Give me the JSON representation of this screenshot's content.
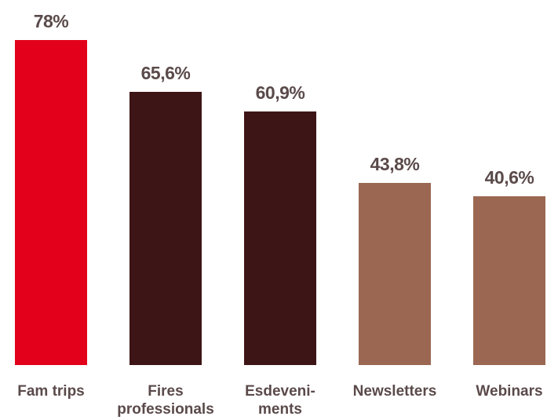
{
  "chart_data": {
    "type": "bar",
    "categories": [
      "Fam trips",
      "Fires\nprofessionals",
      "Esdeveni-\nments",
      "Newsletters",
      "Webinars"
    ],
    "values": [
      78,
      65.6,
      60.9,
      43.8,
      40.6
    ],
    "value_labels": [
      "78%",
      "65,6%",
      "60,9%",
      "43,8%",
      "40,6%"
    ],
    "colors": [
      "#e2001a",
      "#3e1516",
      "#3e1516",
      "#9b6752",
      "#9b6752"
    ],
    "ylim": [
      0,
      78
    ],
    "grid": false,
    "legend": "none"
  }
}
